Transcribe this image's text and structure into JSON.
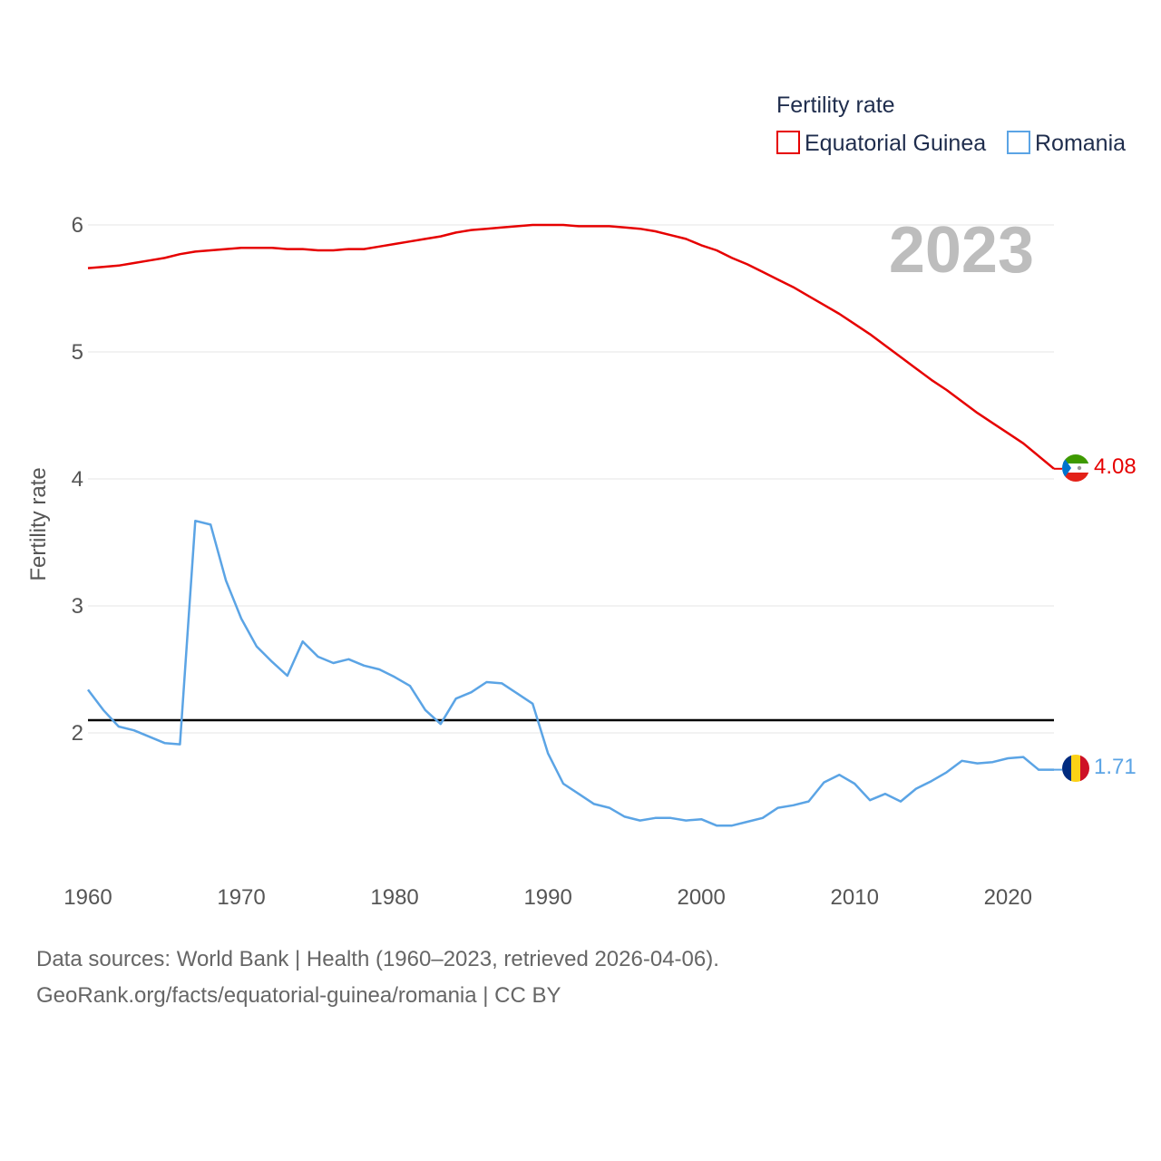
{
  "chart_data": {
    "type": "line",
    "title": "",
    "xlabel": "",
    "ylabel": "Fertility rate",
    "xlim": [
      1960,
      2023
    ],
    "ylim": [
      1.0,
      6.3
    ],
    "yticks": [
      2,
      3,
      4,
      5,
      6
    ],
    "xticks": [
      1960,
      1970,
      1980,
      1990,
      2000,
      2010,
      2020
    ],
    "legend_title": "Fertility rate",
    "legend_position": "top-right",
    "year_label": "2023",
    "reference_line": 2.1,
    "x": [
      1960,
      1961,
      1962,
      1963,
      1964,
      1965,
      1966,
      1967,
      1968,
      1969,
      1970,
      1971,
      1972,
      1973,
      1974,
      1975,
      1976,
      1977,
      1978,
      1979,
      1980,
      1981,
      1982,
      1983,
      1984,
      1985,
      1986,
      1987,
      1988,
      1989,
      1990,
      1991,
      1992,
      1993,
      1994,
      1995,
      1996,
      1997,
      1998,
      1999,
      2000,
      2001,
      2002,
      2003,
      2004,
      2005,
      2006,
      2007,
      2008,
      2009,
      2010,
      2011,
      2012,
      2013,
      2014,
      2015,
      2016,
      2017,
      2018,
      2019,
      2020,
      2021,
      2022,
      2023
    ],
    "series": [
      {
        "name": "Equatorial Guinea",
        "color": "#e60000",
        "end_label": "4.08",
        "values": [
          5.66,
          5.67,
          5.68,
          5.7,
          5.72,
          5.74,
          5.77,
          5.79,
          5.8,
          5.81,
          5.82,
          5.82,
          5.82,
          5.81,
          5.81,
          5.8,
          5.8,
          5.81,
          5.81,
          5.83,
          5.85,
          5.87,
          5.89,
          5.91,
          5.94,
          5.96,
          5.97,
          5.98,
          5.99,
          6.0,
          6.0,
          6.0,
          5.99,
          5.99,
          5.99,
          5.98,
          5.97,
          5.95,
          5.92,
          5.89,
          5.84,
          5.8,
          5.74,
          5.69,
          5.63,
          5.57,
          5.51,
          5.44,
          5.37,
          5.3,
          5.22,
          5.14,
          5.05,
          4.96,
          4.87,
          4.78,
          4.7,
          4.61,
          4.52,
          4.44,
          4.36,
          4.28,
          4.18,
          4.08
        ]
      },
      {
        "name": "Romania",
        "color": "#5ba4e5",
        "end_label": "1.71",
        "values": [
          2.34,
          2.18,
          2.05,
          2.02,
          1.97,
          1.92,
          1.91,
          3.67,
          3.64,
          3.2,
          2.9,
          2.68,
          2.56,
          2.45,
          2.72,
          2.6,
          2.55,
          2.58,
          2.53,
          2.5,
          2.44,
          2.37,
          2.18,
          2.07,
          2.27,
          2.32,
          2.4,
          2.39,
          2.31,
          2.23,
          1.84,
          1.6,
          1.52,
          1.44,
          1.41,
          1.34,
          1.31,
          1.33,
          1.33,
          1.31,
          1.32,
          1.27,
          1.27,
          1.3,
          1.33,
          1.41,
          1.43,
          1.46,
          1.61,
          1.67,
          1.6,
          1.47,
          1.52,
          1.46,
          1.56,
          1.62,
          1.69,
          1.78,
          1.76,
          1.77,
          1.8,
          1.81,
          1.71,
          1.71
        ]
      }
    ]
  },
  "footer": {
    "line1": "Data sources: World Bank | Health (1960–2023, retrieved 2026-04-06).",
    "line2": "GeoRank.org/facts/equatorial-guinea/romania | CC BY"
  },
  "icons": {
    "equatorial_guinea": "equatorial-guinea-flag-icon",
    "romania": "romania-flag-icon"
  }
}
